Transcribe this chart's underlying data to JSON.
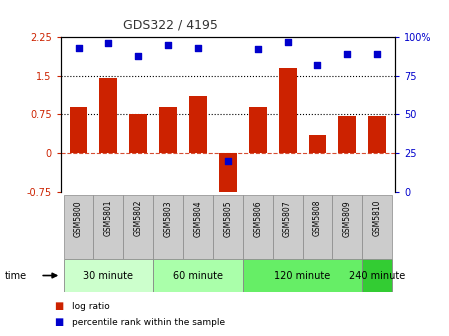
{
  "title": "GDS322 / 4195",
  "samples": [
    "GSM5800",
    "GSM5801",
    "GSM5802",
    "GSM5803",
    "GSM5804",
    "GSM5805",
    "GSM5806",
    "GSM5807",
    "GSM5808",
    "GSM5809",
    "GSM5810"
  ],
  "log_ratio": [
    0.9,
    1.45,
    0.75,
    0.9,
    1.1,
    -0.85,
    0.9,
    1.65,
    0.35,
    0.72,
    0.72
  ],
  "percentile_rank": [
    93,
    96,
    88,
    95,
    93,
    20,
    92,
    97,
    82,
    89,
    89
  ],
  "ylim_left": [
    -0.75,
    2.25
  ],
  "ylim_right": [
    0,
    100
  ],
  "yticks_left": [
    -0.75,
    0,
    0.75,
    1.5,
    2.25
  ],
  "yticks_right": [
    0,
    25,
    50,
    75,
    100
  ],
  "dotted_lines": [
    0.75,
    1.5
  ],
  "zero_line": 0,
  "bar_color": "#cc2200",
  "dot_color": "#0000cc",
  "background_color": "#ffffff",
  "group_data": [
    [
      0,
      2,
      "30 minute",
      "#ccffcc"
    ],
    [
      3,
      5,
      "60 minute",
      "#aaffaa"
    ],
    [
      6,
      9,
      "120 minute",
      "#66ee66"
    ],
    [
      10,
      10,
      "240 minute",
      "#33cc33"
    ]
  ],
  "time_label": "time",
  "legend_log_ratio": "log ratio",
  "legend_percentile": "percentile rank within the sample"
}
